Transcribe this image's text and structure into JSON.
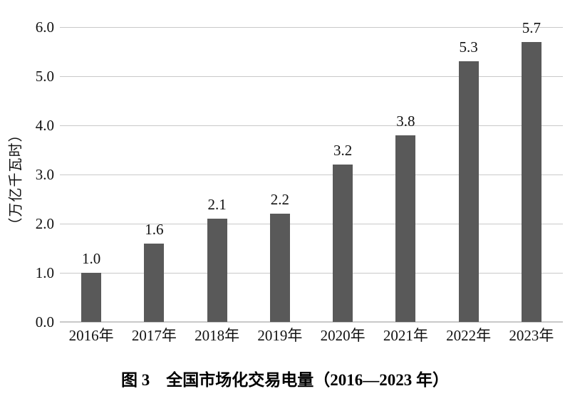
{
  "chart_data": {
    "type": "bar",
    "title": "图 3　全国市场化交易电量（2016—2023 年）",
    "ylabel": "（万亿千瓦时）",
    "xlabel": "",
    "categories": [
      "2016年",
      "2017年",
      "2018年",
      "2019年",
      "2020年",
      "2021年",
      "2022年",
      "2023年"
    ],
    "values": [
      1.0,
      1.6,
      2.1,
      2.2,
      3.2,
      3.8,
      5.3,
      5.7
    ],
    "data_labels": [
      "1.0",
      "1.6",
      "2.1",
      "2.2",
      "3.2",
      "3.8",
      "5.3",
      "5.7"
    ],
    "ylim": [
      0.0,
      6.0
    ],
    "yticks": [
      "0.0",
      "1.0",
      "2.0",
      "3.0",
      "4.0",
      "5.0",
      "6.0"
    ],
    "grid": true,
    "legend": false,
    "colors": {
      "bar": "#595959",
      "gridline": "#c9c9c9",
      "text": "#111111",
      "background": "#ffffff"
    }
  }
}
